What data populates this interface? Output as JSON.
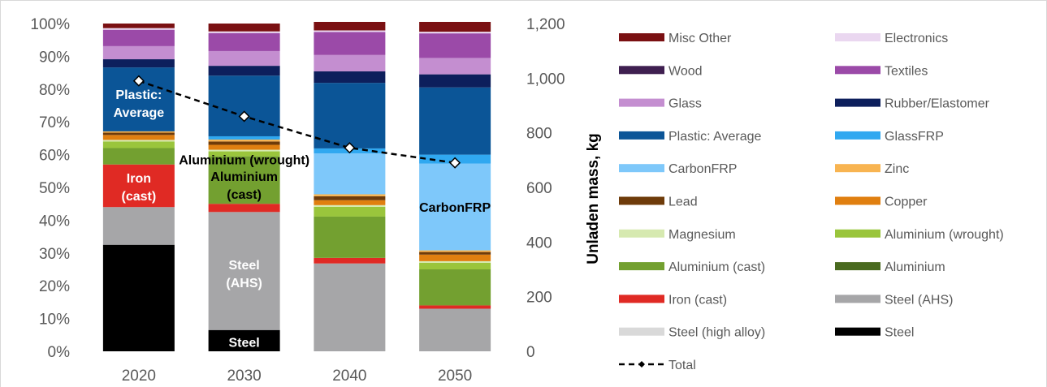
{
  "chart_data": {
    "type": "bar",
    "stacked": true,
    "percent_stacked": true,
    "categories": [
      "2020",
      "2030",
      "2040",
      "2050"
    ],
    "y_left": {
      "ticks": [
        "0%",
        "10%",
        "20%",
        "30%",
        "40%",
        "50%",
        "60%",
        "70%",
        "80%",
        "90%",
        "100%"
      ],
      "ylim": [
        0,
        100
      ]
    },
    "y_right": {
      "label": "Unladen mass, kg",
      "ticks": [
        "0",
        "200",
        "400",
        "600",
        "800",
        "1,000",
        "1,200"
      ],
      "ylim": [
        0,
        1200
      ]
    },
    "series": [
      {
        "name": "Steel",
        "color": "#000000",
        "values": [
          32.5,
          6.5,
          0,
          0
        ]
      },
      {
        "name": "Steel (high alloy)",
        "color": "#d9d9d9",
        "values": [
          0,
          0,
          0,
          0
        ]
      },
      {
        "name": "Steel (AHS)",
        "color": "#a6a6a8",
        "values": [
          11.5,
          36.0,
          26.8,
          13.0
        ]
      },
      {
        "name": "Iron (cast)",
        "color": "#e02a24",
        "values": [
          13.0,
          2.5,
          1.7,
          1.0
        ]
      },
      {
        "name": "Aluminium",
        "color": "#4a6a1f",
        "values": [
          0,
          0,
          0,
          0
        ]
      },
      {
        "name": "Aluminium (cast)",
        "color": "#73a030",
        "values": [
          5.0,
          14.5,
          12.6,
          11.0
        ]
      },
      {
        "name": "Aluminium (wrought)",
        "color": "#9ac53c",
        "values": [
          2.0,
          1.5,
          3.0,
          2.0
        ]
      },
      {
        "name": "Magnesium",
        "color": "#d6e9b0",
        "values": [
          0.5,
          0.5,
          0.5,
          0.5
        ]
      },
      {
        "name": "Copper",
        "color": "#e07f10",
        "values": [
          1.5,
          1.5,
          1.5,
          2.0
        ]
      },
      {
        "name": "Lead",
        "color": "#6e3b0a",
        "values": [
          0.7,
          1.0,
          1.2,
          0.8
        ]
      },
      {
        "name": "Zinc",
        "color": "#f8b451",
        "values": [
          0.4,
          0.6,
          0.6,
          0.5
        ]
      },
      {
        "name": "CarbonFRP",
        "color": "#7ec8fa",
        "values": [
          0,
          0,
          12.5,
          26.5
        ]
      },
      {
        "name": "GlassFRP",
        "color": "#30a8f0",
        "values": [
          0,
          1.0,
          1.5,
          2.7
        ]
      },
      {
        "name": "Plastic: Average",
        "color": "#0b5597",
        "values": [
          19.5,
          18.5,
          20.0,
          20.5
        ]
      },
      {
        "name": "Rubber/Elastomer",
        "color": "#0d1f5c",
        "values": [
          2.5,
          3.0,
          3.5,
          4.0
        ]
      },
      {
        "name": "Glass",
        "color": "#c48ed0",
        "values": [
          4.0,
          4.5,
          5.0,
          5.0
        ]
      },
      {
        "name": "Textiles",
        "color": "#9b4aa8",
        "values": [
          5.0,
          5.5,
          7.0,
          7.5
        ]
      },
      {
        "name": "Wood",
        "color": "#3f1f50",
        "values": [
          0,
          0,
          0,
          0
        ]
      },
      {
        "name": "Electronics",
        "color": "#ead7f0",
        "values": [
          0.5,
          0.5,
          0.5,
          0.5
        ]
      },
      {
        "name": "Misc Other",
        "color": "#7a1012",
        "values": [
          1.4,
          2.4,
          2.6,
          3.0
        ]
      }
    ],
    "total_line": {
      "name": "Total",
      "axis": "right",
      "values": [
        990,
        860,
        745,
        690
      ]
    },
    "legend_order": [
      [
        "Misc Other",
        "Electronics"
      ],
      [
        "Wood",
        "Textiles"
      ],
      [
        "Glass",
        "Rubber/Elastomer"
      ],
      [
        "Plastic: Average",
        "GlassFRP"
      ],
      [
        "CarbonFRP",
        "Zinc"
      ],
      [
        "Lead",
        "Copper"
      ],
      [
        "Magnesium",
        "Aluminium (wrought)"
      ],
      [
        "Aluminium (cast)",
        "Aluminium"
      ],
      [
        "Iron (cast)",
        "Steel (AHS)"
      ],
      [
        "Steel (high alloy)",
        "Steel"
      ],
      [
        "Total",
        null
      ]
    ],
    "annotations": [
      {
        "text": "Plastic:",
        "category": "2020",
        "y": 78.5,
        "color": "#ffffff"
      },
      {
        "text": "Average",
        "category": "2020",
        "y": 73.0,
        "color": "#ffffff"
      },
      {
        "text": "Iron",
        "category": "2020",
        "y": 53.0,
        "color": "#ffffff"
      },
      {
        "text": "(cast)",
        "category": "2020",
        "y": 47.5,
        "color": "#ffffff"
      },
      {
        "text": "Aluminium (wrought)",
        "category": "2030",
        "y": 58.5,
        "color": "#000000"
      },
      {
        "text": "Aluminium",
        "category": "2030",
        "y": 53.5,
        "color": "#000000"
      },
      {
        "text": "(cast)",
        "category": "2030",
        "y": 48.0,
        "color": "#000000"
      },
      {
        "text": "Steel",
        "category": "2030",
        "y": 26.5,
        "color": "#ffffff"
      },
      {
        "text": "(AHS)",
        "category": "2030",
        "y": 21.0,
        "color": "#ffffff"
      },
      {
        "text": "Steel",
        "category": "2030",
        "y": 2.8,
        "color": "#ffffff"
      },
      {
        "text": "CarbonFRP",
        "category": "2050",
        "y": 44.0,
        "color": "#000000"
      }
    ]
  }
}
